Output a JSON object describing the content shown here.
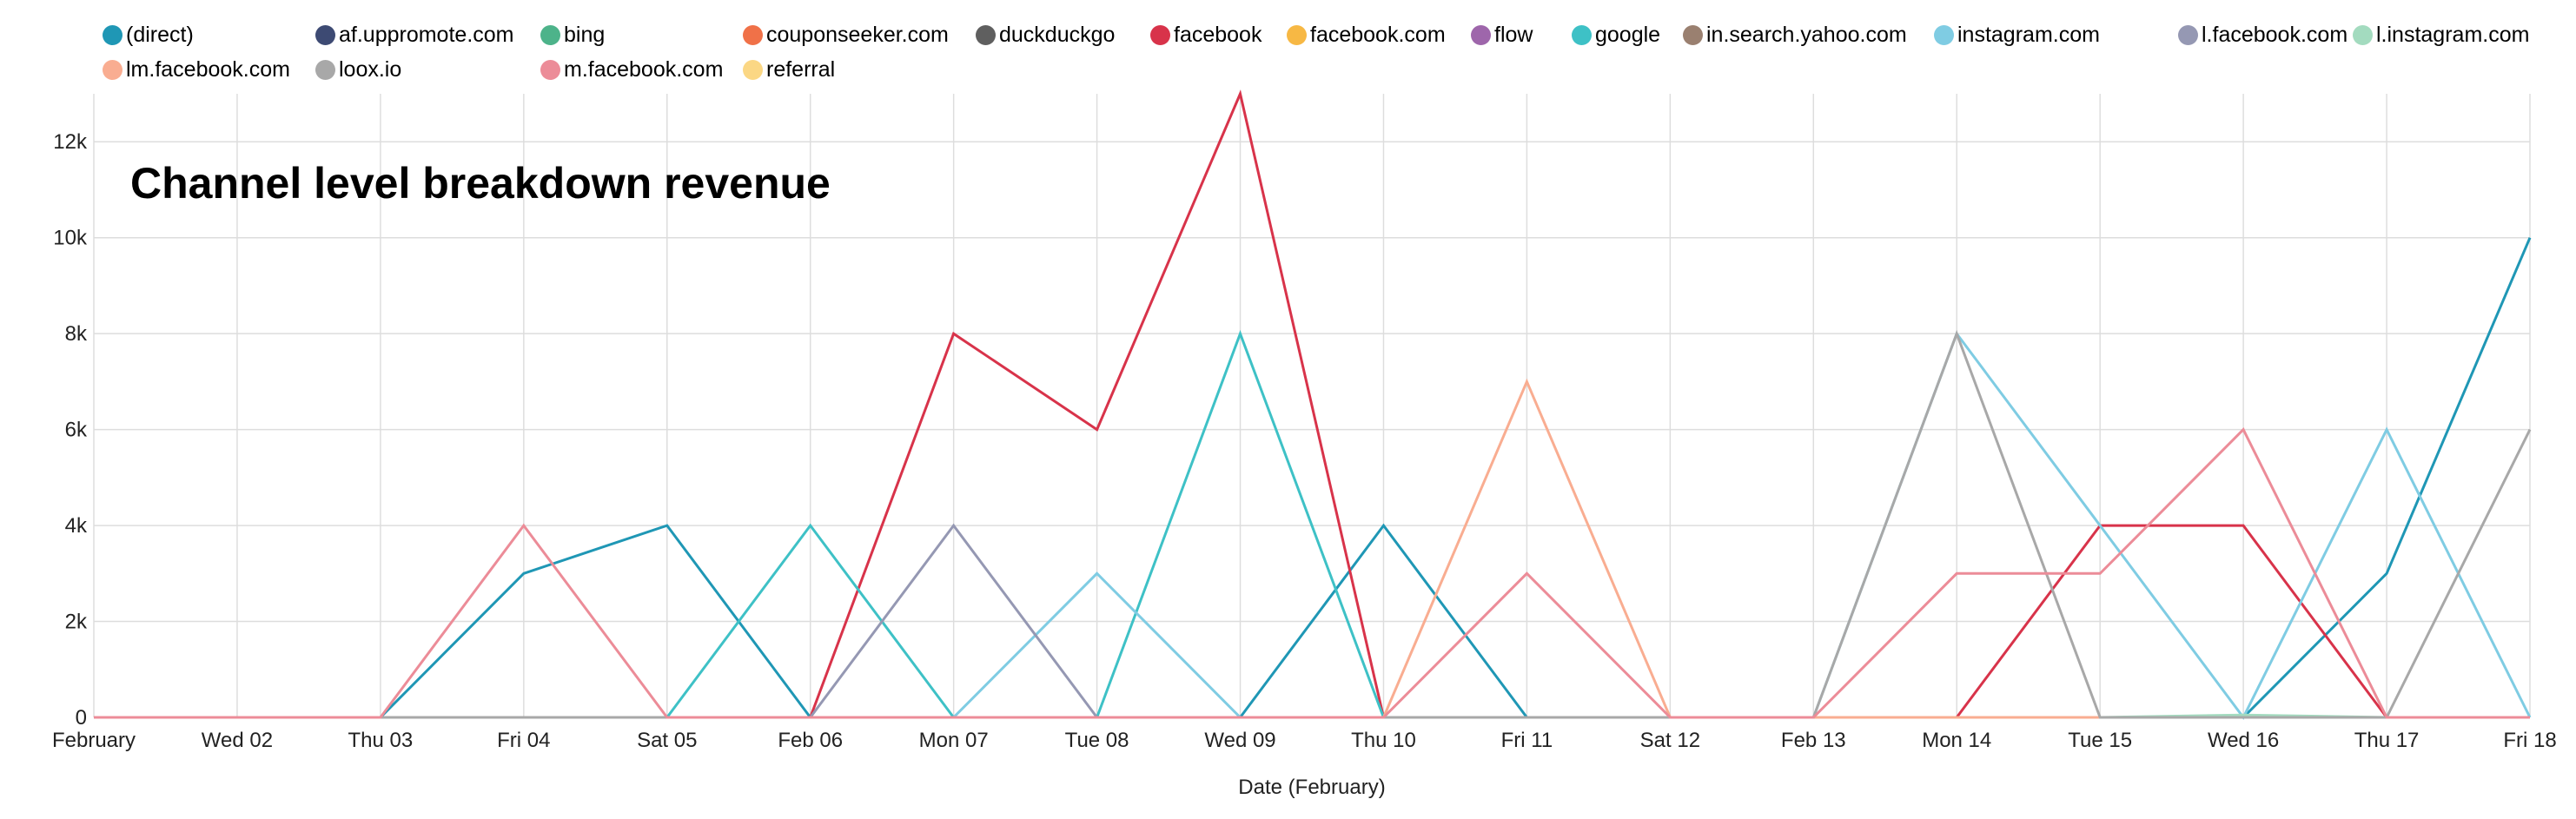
{
  "chart_data": {
    "type": "line",
    "title": "Channel level breakdown revenue",
    "xlabel": "Date (February)",
    "ylabel": "",
    "ylim": [
      0,
      13000
    ],
    "yticks": [
      {
        "value": 0,
        "label": "0"
      },
      {
        "value": 2000,
        "label": "2k"
      },
      {
        "value": 4000,
        "label": "4k"
      },
      {
        "value": 6000,
        "label": "6k"
      },
      {
        "value": 8000,
        "label": "8k"
      },
      {
        "value": 10000,
        "label": "10k"
      },
      {
        "value": 12000,
        "label": "12k"
      }
    ],
    "grid": true,
    "legend_position": "top",
    "categories": [
      "February",
      "Wed 02",
      "Thu 03",
      "Fri 04",
      "Sat 05",
      "Feb 06",
      "Mon 07",
      "Tue 08",
      "Wed 09",
      "Thu 10",
      "Fri 11",
      "Sat 12",
      "Feb 13",
      "Mon 14",
      "Tue 15",
      "Wed 16",
      "Thu 17",
      "Fri 18"
    ],
    "series": [
      {
        "name": "(direct)",
        "color": "#1f97b5",
        "values": [
          0,
          0,
          0,
          3000,
          4000,
          0,
          0,
          0,
          0,
          4000,
          0,
          0,
          0,
          0,
          0,
          0,
          3000,
          10000
        ]
      },
      {
        "name": "af.uppromote.com",
        "color": "#3d4a73",
        "values": [
          0,
          0,
          0,
          0,
          0,
          0,
          0,
          0,
          0,
          0,
          0,
          0,
          0,
          0,
          0,
          0,
          0,
          0
        ]
      },
      {
        "name": "bing",
        "color": "#4db38a",
        "values": [
          0,
          0,
          0,
          0,
          0,
          0,
          0,
          0,
          0,
          0,
          0,
          0,
          0,
          0,
          0,
          0,
          0,
          0
        ]
      },
      {
        "name": "couponseeker.com",
        "color": "#f07148",
        "values": [
          0,
          0,
          0,
          0,
          0,
          0,
          0,
          0,
          0,
          0,
          0,
          0,
          0,
          0,
          0,
          0,
          0,
          0
        ]
      },
      {
        "name": "duckduckgo",
        "color": "#5f5f5f",
        "values": [
          0,
          0,
          0,
          0,
          0,
          0,
          0,
          0,
          0,
          0,
          0,
          0,
          0,
          0,
          0,
          0,
          0,
          0
        ]
      },
      {
        "name": "facebook",
        "color": "#d8334a",
        "values": [
          0,
          0,
          0,
          0,
          0,
          0,
          8000,
          6000,
          13000,
          0,
          0,
          0,
          0,
          0,
          4000,
          4000,
          0,
          0
        ]
      },
      {
        "name": "facebook.com",
        "color": "#f7b844",
        "values": [
          0,
          0,
          0,
          0,
          0,
          0,
          0,
          0,
          0,
          0,
          0,
          0,
          0,
          0,
          0,
          0,
          0,
          0
        ]
      },
      {
        "name": "flow",
        "color": "#9e66ab",
        "values": [
          0,
          0,
          0,
          0,
          0,
          0,
          0,
          0,
          0,
          0,
          0,
          0,
          0,
          0,
          0,
          0,
          0,
          0
        ]
      },
      {
        "name": "google",
        "color": "#3ec1c6",
        "values": [
          0,
          0,
          0,
          0,
          0,
          4000,
          0,
          0,
          8000,
          0,
          0,
          0,
          0,
          0,
          0,
          0,
          0,
          0
        ]
      },
      {
        "name": "in.search.yahoo.com",
        "color": "#9a8070",
        "values": [
          0,
          0,
          0,
          0,
          0,
          0,
          0,
          0,
          0,
          0,
          0,
          0,
          0,
          0,
          0,
          0,
          0,
          0
        ]
      },
      {
        "name": "instagram.com",
        "color": "#7fcce3",
        "values": [
          0,
          0,
          0,
          0,
          0,
          0,
          0,
          3000,
          0,
          0,
          0,
          0,
          0,
          8000,
          4000,
          0,
          6000,
          0
        ]
      },
      {
        "name": "l.facebook.com",
        "color": "#9598b3",
        "values": [
          0,
          0,
          0,
          0,
          0,
          0,
          4000,
          0,
          0,
          0,
          0,
          0,
          0,
          0,
          0,
          0,
          0,
          0
        ]
      },
      {
        "name": "l.instagram.com",
        "color": "#a3dbbf",
        "values": [
          0,
          0,
          0,
          0,
          0,
          0,
          0,
          0,
          0,
          0,
          0,
          0,
          0,
          0,
          0,
          50,
          0,
          0
        ]
      },
      {
        "name": "lm.facebook.com",
        "color": "#f9ad91",
        "values": [
          0,
          0,
          0,
          0,
          0,
          0,
          0,
          0,
          0,
          0,
          7000,
          0,
          0,
          0,
          0,
          0,
          0,
          0
        ]
      },
      {
        "name": "loox.io",
        "color": "#a8a8a8",
        "values": [
          0,
          0,
          0,
          0,
          0,
          0,
          0,
          0,
          0,
          0,
          0,
          0,
          0,
          8000,
          0,
          0,
          0,
          6000
        ]
      },
      {
        "name": "m.facebook.com",
        "color": "#ec8c98",
        "values": [
          0,
          0,
          0,
          4000,
          0,
          0,
          0,
          0,
          0,
          0,
          3000,
          0,
          0,
          3000,
          3000,
          6000,
          0,
          0
        ]
      },
      {
        "name": "referral",
        "color": "#fbd784",
        "values": [
          0,
          0,
          0,
          0,
          0,
          0,
          0,
          0,
          0,
          0,
          0,
          0,
          0,
          0,
          0,
          0,
          0,
          0
        ]
      }
    ]
  }
}
